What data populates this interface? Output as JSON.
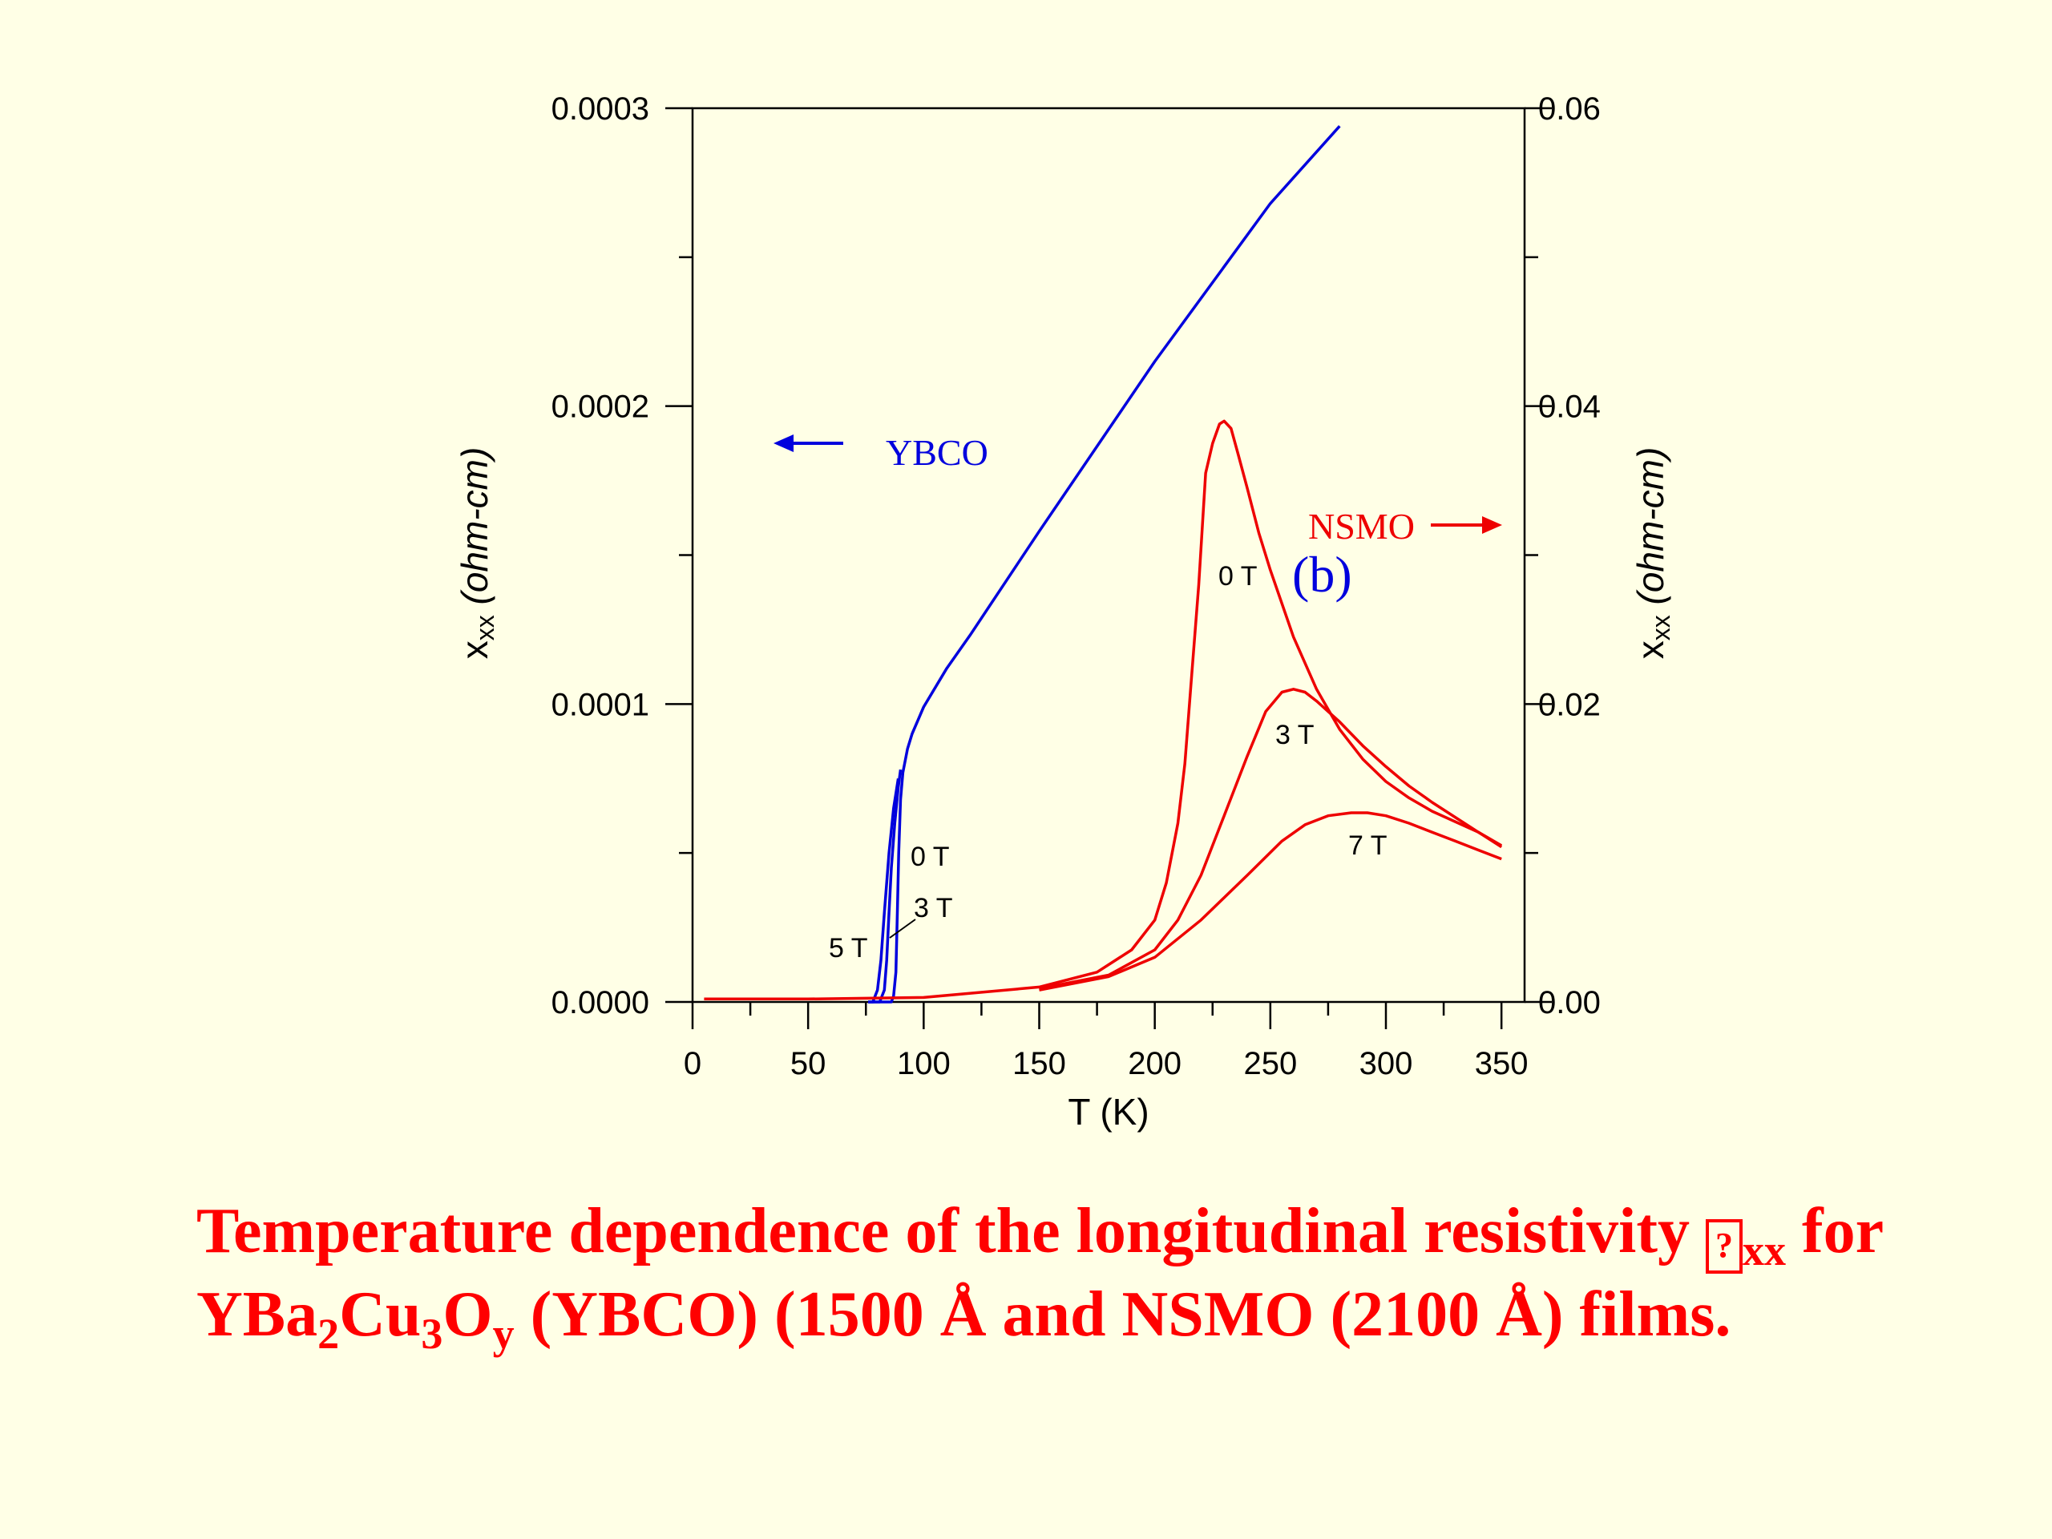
{
  "colors": {
    "background": "#ffffe6",
    "ybco": "#0000dd",
    "nsmo": "#ee0000",
    "caption": "#ff0000",
    "axes": "#000000"
  },
  "chart_data": {
    "type": "line",
    "xlabel": "T (K)",
    "ylabel_left": {
      "main": "x",
      "sub": "xx",
      "rest": " (ohm-cm)"
    },
    "ylabel_right": {
      "main": "x",
      "sub": "xx",
      "rest": " (ohm-cm)"
    },
    "xlim": [
      0,
      360
    ],
    "ylim_left": [
      0,
      0.0003
    ],
    "ylim_right": [
      0,
      0.06
    ],
    "xticks": [
      "0",
      "50",
      "100",
      "150",
      "200",
      "250",
      "300",
      "350"
    ],
    "xtick_values": [
      0,
      50,
      100,
      150,
      200,
      250,
      300,
      350
    ],
    "yticks_left": [
      "0.0000",
      "0.0001",
      "0.0002",
      "0.0003"
    ],
    "ytick_values_left": [
      0,
      0.0001,
      0.0002,
      0.0003
    ],
    "yticks_right": [
      "0.00",
      "0.02",
      "0.04",
      "0.06"
    ],
    "ytick_values_right": [
      0,
      0.02,
      0.04,
      0.06
    ],
    "grid": false,
    "panel_label": "(b)",
    "series_tags": [
      {
        "text": "YBCO",
        "axis": "left",
        "arrow": "left",
        "color": "#0000dd"
      },
      {
        "text": "NSMO",
        "axis": "right",
        "arrow": "right",
        "color": "#ee0000"
      }
    ],
    "series": [
      {
        "group": "YBCO",
        "field_label": "0 T",
        "axis": "left",
        "color": "#0000dd",
        "x": [
          76,
          84,
          86,
          87,
          88,
          88.6,
          89.2,
          90,
          91,
          93,
          95,
          100,
          110,
          120,
          150,
          200,
          250,
          280
        ],
        "y": [
          0,
          0,
          0,
          2e-06,
          1e-05,
          3e-05,
          5e-05,
          6.8e-05,
          7.7e-05,
          8.5e-05,
          9e-05,
          9.9e-05,
          0.000112,
          0.000123,
          0.000158,
          0.000215,
          0.000268,
          0.000294
        ]
      },
      {
        "group": "YBCO",
        "field_label": "3 T",
        "axis": "left",
        "color": "#0000dd",
        "x": [
          76,
          81,
          83,
          84,
          85,
          86,
          87.5,
          89,
          90
        ],
        "y": [
          0,
          0,
          4e-06,
          1.4e-05,
          3e-05,
          4.5e-05,
          6e-05,
          7.2e-05,
          7.8e-05
        ]
      },
      {
        "group": "YBCO",
        "field_label": "5 T",
        "axis": "left",
        "color": "#0000dd",
        "x": [
          76,
          78,
          80,
          81.5,
          83,
          85,
          87,
          89
        ],
        "y": [
          0,
          0,
          4e-06,
          1.4e-05,
          3e-05,
          5e-05,
          6.5e-05,
          7.5e-05
        ]
      },
      {
        "group": "NSMO",
        "field_label": "0 T",
        "axis": "right",
        "color": "#ee0000",
        "x": [
          5,
          50,
          100,
          150,
          175,
          190,
          200,
          205,
          210,
          213,
          216,
          219,
          222,
          225,
          228,
          230,
          233,
          236,
          240,
          245,
          250,
          260,
          270,
          280,
          290,
          300,
          310,
          320,
          330,
          340,
          350
        ],
        "y": [
          0.0002,
          0.0002,
          0.0003,
          0.001,
          0.002,
          0.0035,
          0.0055,
          0.008,
          0.012,
          0.016,
          0.022,
          0.028,
          0.0355,
          0.0375,
          0.0388,
          0.039,
          0.0385,
          0.0368,
          0.0345,
          0.0315,
          0.029,
          0.0245,
          0.021,
          0.0183,
          0.0163,
          0.0148,
          0.0137,
          0.0128,
          0.0121,
          0.0114,
          0.0104
        ]
      },
      {
        "group": "NSMO",
        "field_label": "3 T",
        "axis": "right",
        "color": "#ee0000",
        "x": [
          150,
          180,
          200,
          210,
          220,
          230,
          240,
          248,
          255,
          260,
          265,
          270,
          280,
          290,
          300,
          310,
          320,
          330,
          340,
          350
        ],
        "y": [
          0.0009,
          0.0018,
          0.0035,
          0.0055,
          0.0085,
          0.0125,
          0.0165,
          0.0195,
          0.0208,
          0.021,
          0.0208,
          0.0202,
          0.0188,
          0.0172,
          0.0158,
          0.0145,
          0.0134,
          0.0124,
          0.0114,
          0.0105
        ]
      },
      {
        "group": "NSMO",
        "field_label": "7 T",
        "axis": "right",
        "color": "#ee0000",
        "x": [
          150,
          180,
          200,
          220,
          240,
          255,
          265,
          275,
          285,
          292,
          300,
          310,
          320,
          330,
          340,
          350
        ],
        "y": [
          0.0008,
          0.0017,
          0.003,
          0.0055,
          0.0085,
          0.0108,
          0.0119,
          0.0125,
          0.0127,
          0.0127,
          0.0125,
          0.012,
          0.0114,
          0.0108,
          0.0102,
          0.0096
        ]
      }
    ]
  },
  "caption": {
    "line1_text": "Temperature dependence of the longitudinal resistivity ",
    "line1_symbol": "?",
    "line1_sub": "xx",
    "line1_end": " for",
    "line2_a": "YBa",
    "line2_sub1": "2",
    "line2_b": "Cu",
    "line2_sub2": "3",
    "line2_c": "O",
    "line2_sub3": "y",
    "line2_end": " (YBCO) (1500 Å and NSMO (2100 Å) films."
  }
}
